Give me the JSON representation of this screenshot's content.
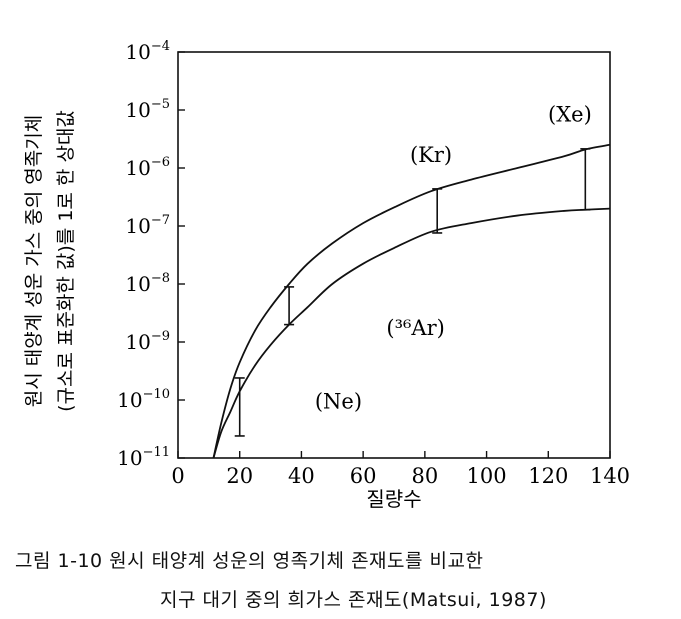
{
  "chart_data": {
    "type": "line",
    "title": "",
    "xlabel": "질량수",
    "ylabel": "원시 태양계 성운 가스 중의 영족기체 (규소로 표준화한 값)를 1로 한 상대값",
    "ylabel_lines": [
      "원시 태양계 성운 가스 중의 영족기체",
      "(규소로 표준화한 값)를 1로 한 상대값"
    ],
    "xlim": [
      0,
      140
    ],
    "ylim_exponent": [
      -11,
      -4
    ],
    "y_scale": "log",
    "grid": false,
    "x_ticks": [
      "0",
      "20",
      "40",
      "60",
      "80",
      "100",
      "120",
      "140"
    ],
    "y_ticks": [
      "10-11",
      "10-10",
      "10-9",
      "10-8",
      "10-7",
      "10-6",
      "10-5",
      "10-4"
    ],
    "series": [
      {
        "x": [
          11.5,
          14,
          17,
          20,
          25,
          30,
          36,
          42,
          50,
          60,
          70,
          82,
          95,
          110,
          125,
          132,
          140
        ],
        "log10_y": [
          -11.0,
          -10.4,
          -9.8,
          -9.35,
          -8.8,
          -8.4,
          -8.0,
          -7.65,
          -7.3,
          -6.95,
          -6.68,
          -6.4,
          -6.2,
          -6.0,
          -5.8,
          -5.68,
          -5.6
        ]
      },
      {
        "x": [
          11.5,
          14,
          17,
          20,
          25,
          30,
          36,
          42,
          50,
          60,
          70,
          82,
          95,
          110,
          125,
          132,
          140
        ],
        "log10_y": [
          -11.0,
          -10.55,
          -10.2,
          -9.85,
          -9.4,
          -9.05,
          -8.7,
          -8.4,
          -8.0,
          -7.65,
          -7.38,
          -7.1,
          -6.95,
          -6.82,
          -6.74,
          -6.72,
          -6.7
        ]
      }
    ],
    "ranges": [
      {
        "label": "(Ne)",
        "x": 20,
        "log10_y": [
          -10.62,
          -9.62
        ]
      },
      {
        "label": "(³⁶Ar)",
        "x": 36,
        "log10_y": [
          -8.7,
          -8.05
        ]
      },
      {
        "label": "(Kr)",
        "x": 84,
        "log10_y": [
          -7.12,
          -6.36
        ]
      },
      {
        "label": "(Xe)",
        "x": 132,
        "log10_y": [
          -6.72,
          -5.67
        ]
      }
    ],
    "annotations": [
      {
        "text": "(Ne)",
        "x": 52,
        "log10_y": -10.15
      },
      {
        "text": "(³⁶Ar)",
        "x": 77,
        "log10_y": -8.88
      },
      {
        "text": "(Kr)",
        "x": 82,
        "log10_y": -5.9
      },
      {
        "text": "(Xe)",
        "x": 127,
        "log10_y": -5.2
      }
    ]
  },
  "caption": {
    "line1": "그림 1-10  원시 태양계 성운의 영족기체 존재도를 비교한",
    "line2": "지구 대기 중의 희가스 존재도(Matsui, 1987)"
  }
}
